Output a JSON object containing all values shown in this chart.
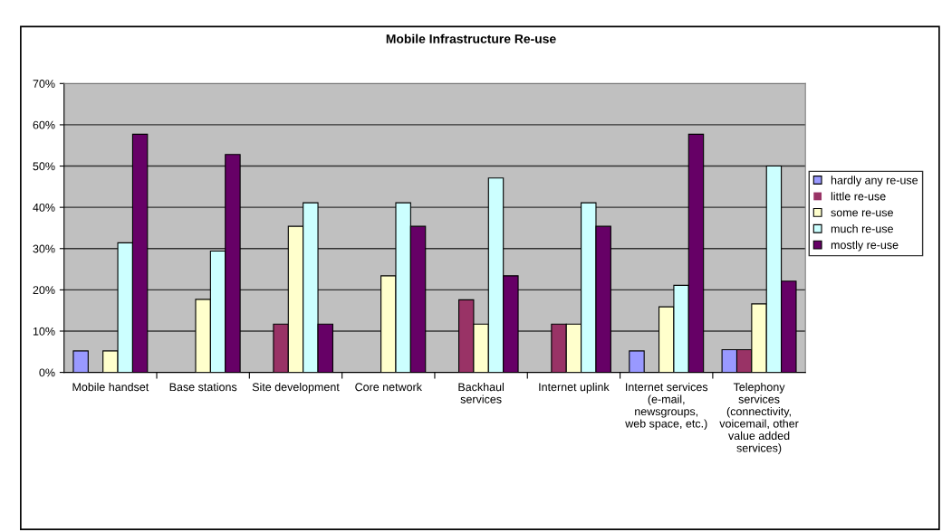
{
  "chart_data": {
    "type": "bar",
    "title": "Mobile Infrastructure Re-use",
    "categories": [
      "Mobile handset",
      "Base stations",
      "Site development",
      "Core network",
      "Backhaul services",
      "Internet uplink",
      "Internet services (e-mail, newsgroups, web space, etc.)",
      "Telephony services (connectivity, voicemail, other value added services)"
    ],
    "series": [
      {
        "name": "hardly any re-use",
        "color": "#9999ff",
        "values": [
          5.2,
          0,
          0,
          0,
          0,
          0,
          5.2,
          5.5
        ]
      },
      {
        "name": "little re-use",
        "color": "#993366",
        "values": [
          0,
          0,
          11.7,
          0,
          17.6,
          11.7,
          0,
          5.5
        ]
      },
      {
        "name": "some re-use",
        "color": "#ffffcc",
        "values": [
          5.2,
          17.7,
          35.4,
          23.4,
          11.7,
          11.7,
          15.9,
          16.6
        ]
      },
      {
        "name": "much re-use",
        "color": "#ccffff",
        "values": [
          31.4,
          29.4,
          41.1,
          41.1,
          47.1,
          41.1,
          21.1,
          50.0
        ]
      },
      {
        "name": "mostly re-use",
        "color": "#660066",
        "values": [
          57.7,
          52.8,
          11.7,
          35.4,
          23.4,
          35.4,
          57.7,
          22.1
        ]
      }
    ],
    "ylim": [
      0,
      70
    ],
    "yticks": [
      {
        "value": 0,
        "label": "0%"
      },
      {
        "value": 10,
        "label": "10%"
      },
      {
        "value": 20,
        "label": "20%"
      },
      {
        "value": 30,
        "label": "30%"
      },
      {
        "value": 40,
        "label": "40%"
      },
      {
        "value": 50,
        "label": "50%"
      },
      {
        "value": 60,
        "label": "60%"
      },
      {
        "value": 70,
        "label": "70%"
      }
    ],
    "grid": "y",
    "legend": "right"
  }
}
